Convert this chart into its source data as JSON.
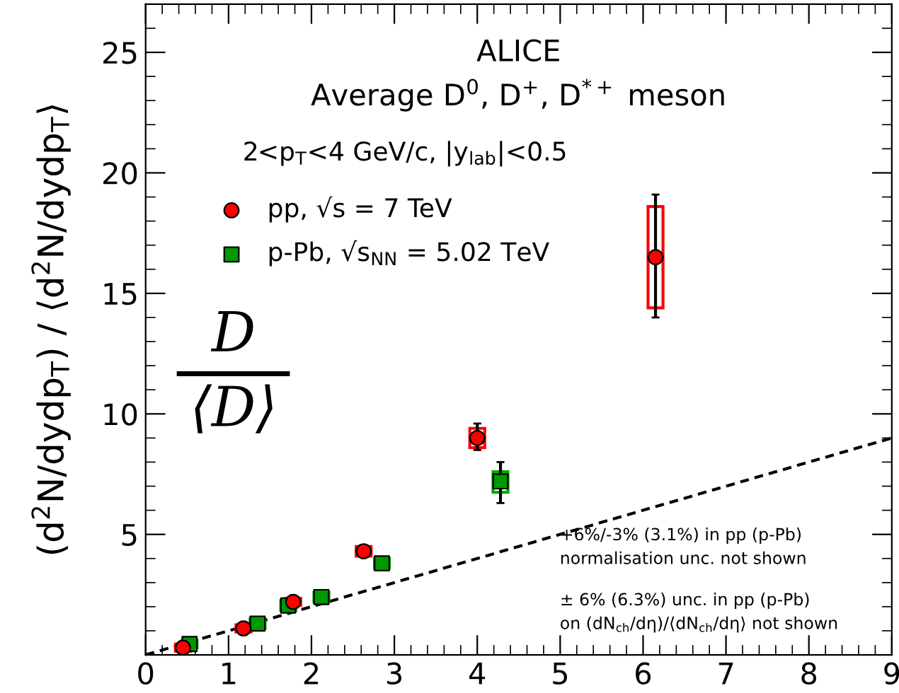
{
  "chart_data": {
    "type": "scatter",
    "title": "ALICE",
    "subtitle": "Average D$^{0}$, D$^{+}$, D$^{*+}$ meson",
    "ylabel": "(d$^{2}$N/dydp$_{T}$) / ⟨d$^{2}$N/dydp$_{T}$⟩",
    "annotations": [
      "2<p$_{T}$<4 GeV/c, |y$_{lab}$|<0.5",
      "D",
      "⟨D⟩",
      "+6%/-3% (3.1%) in pp (p-Pb)\nnormalisation unc. not shown",
      "± 6% (6.3%) unc. in pp (p-Pb)\non (dN$_{ch}$/dη)/⟨dN$_{ch}$/dη⟩ not shown"
    ],
    "series": [
      {
        "type": "bar",
        "color": "#ff0000",
        "x": [
          0.45,
          1.18,
          1.78,
          2.63,
          4.0,
          6.15
        ],
        "base": [
          0.15,
          0.95,
          2.05,
          4.1,
          8.6,
          14.4
        ],
        "values": [
          0.3,
          0.3,
          0.3,
          0.4,
          0.8,
          4.2
        ]
      },
      {
        "type": "bar",
        "color": "#00aa00",
        "x": [
          0.53,
          1.35,
          1.72,
          2.12,
          2.85,
          4.28
        ],
        "base": [
          0.3,
          1.1,
          1.85,
          2.2,
          3.6,
          6.75
        ],
        "values": [
          0.3,
          0.4,
          0.4,
          0.4,
          0.4,
          0.85
        ]
      },
      {
        "name": "pp, √s = 7 TeV",
        "color": "#ff0000",
        "marker": "circle",
        "x": [
          0.45,
          1.18,
          1.78,
          2.63,
          4.0,
          6.15
        ],
        "values": [
          0.3,
          1.1,
          2.2,
          4.3,
          9.0,
          16.5
        ],
        "errors": [
          null,
          null,
          null,
          null,
          [
            8.5,
            9.6
          ],
          [
            14.0,
            19.1
          ]
        ]
      },
      {
        "name": "p-Pb, √s$_{NN}$ = 5.02 TeV",
        "color": "#009900",
        "marker": "square",
        "x": [
          0.53,
          1.35,
          1.72,
          2.12,
          2.85,
          4.28
        ],
        "values": [
          0.45,
          1.3,
          2.05,
          2.4,
          3.8,
          7.2
        ],
        "errors": [
          null,
          null,
          null,
          null,
          null,
          [
            6.3,
            8.0
          ]
        ]
      },
      {
        "type": "line",
        "color": "#000000",
        "line_style": "dashed",
        "marker": "none",
        "x": [
          0,
          9
        ],
        "values": [
          0,
          9
        ]
      }
    ],
    "xlim": [
      0,
      9
    ],
    "xticks": [
      0,
      1,
      2,
      3,
      4,
      5,
      6,
      7,
      8,
      9
    ],
    "ylim": [
      0,
      27
    ],
    "yticks": [
      5,
      10,
      15,
      20,
      25
    ],
    "grid": false,
    "legend": "top left"
  }
}
